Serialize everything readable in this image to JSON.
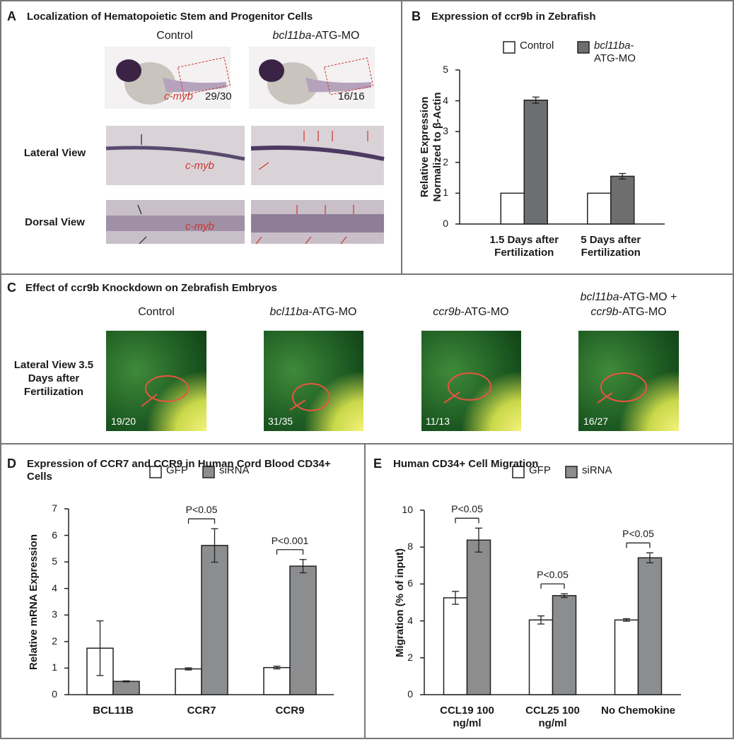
{
  "panel_a": {
    "letter": "A",
    "title": "Localization of Hematopoietic Stem and Progenitor Cells",
    "columns": [
      {
        "text": "Control"
      },
      {
        "text": "bcl11ba-ATG-MO",
        "italic_prefix": true
      }
    ],
    "gene": "c-myb",
    "counts": [
      "29/30",
      "16/16"
    ],
    "rows": [
      "Lateral View",
      "Dorsal View"
    ]
  },
  "panel_c": {
    "letter": "C",
    "title": "Effect of ccr9b Knockdown on Zebrafish Embryos",
    "row_label": "Lateral View 3.5 Days after Fertilization",
    "columns": [
      [
        {
          "text": "Control"
        }
      ],
      [
        {
          "text": "bcl11ba-ATG-MO",
          "italic_prefix": true
        }
      ],
      [
        {
          "text": "ccr9b-ATG-MO",
          "italic_prefix": true
        }
      ],
      [
        {
          "text": "bcl11ba-ATG-MO +",
          "italic_prefix": true
        },
        {
          "text": "ccr9b-ATG-MO",
          "italic_prefix": true
        }
      ]
    ],
    "counts": [
      "19/20",
      "31/35",
      "11/13",
      "16/27"
    ]
  },
  "chart_data": [
    {
      "type": "bar",
      "letter": "B",
      "title": "Expression of ccr9b in Zebrafish",
      "ylabel": "Relative Expression Normalized to β-Actin",
      "categories": [
        "1.5 Days after Fertilization",
        "5 Days after Fertilization"
      ],
      "series": [
        {
          "name": "Control",
          "color": "#ffffff",
          "values": [
            1,
            1
          ]
        },
        {
          "name": "bcl11ba-ATG-MO",
          "italic_prefix": true,
          "color": "#6d6e70",
          "values": [
            4.02,
            1.55
          ],
          "errors": [
            0.1,
            0.09
          ]
        }
      ],
      "ylim": [
        0,
        5
      ],
      "yticks": [
        0,
        1,
        2,
        3,
        4,
        5
      ]
    },
    {
      "type": "bar",
      "letter": "D",
      "title": "Expression of CCR7 and CCR9 in Human Cord Blood CD34+ Cells",
      "ylabel": "Relative mRNA Expression",
      "categories": [
        "BCL11B",
        "CCR7",
        "CCR9"
      ],
      "series": [
        {
          "name": "GFP",
          "color": "#ffffff",
          "values": [
            1.75,
            0.97,
            1.02
          ],
          "errors": [
            1.03,
            0.04,
            0.05
          ]
        },
        {
          "name": "siRNA",
          "color": "#8c8d8f",
          "values": [
            0.5,
            5.62,
            4.84
          ],
          "errors": [
            0.02,
            0.63,
            0.25
          ]
        }
      ],
      "significance": [
        null,
        "P<0.05",
        "P<0.001"
      ],
      "ylim": [
        0,
        7
      ],
      "yticks": [
        0,
        1,
        2,
        3,
        4,
        5,
        6,
        7
      ]
    },
    {
      "type": "bar",
      "letter": "E",
      "title": "Human CD34+ Cell Migration",
      "ylabel": "Migration (% of input)",
      "categories": [
        "CCL19 100 ng/ml",
        "CCL25 100 ng/ml",
        "No Chemokine"
      ],
      "series": [
        {
          "name": "GFP",
          "color": "#ffffff",
          "values": [
            5.25,
            4.05,
            4.05
          ],
          "errors": [
            0.35,
            0.22,
            0.07
          ]
        },
        {
          "name": "siRNA",
          "color": "#8c8d8f",
          "values": [
            8.38,
            5.37,
            7.42
          ],
          "errors": [
            0.65,
            0.1,
            0.27
          ]
        }
      ],
      "significance": [
        "P<0.05",
        "P<0.05",
        "P<0.05"
      ],
      "ylim": [
        0,
        10
      ],
      "yticks": [
        0,
        2,
        4,
        6,
        8,
        10
      ]
    }
  ]
}
